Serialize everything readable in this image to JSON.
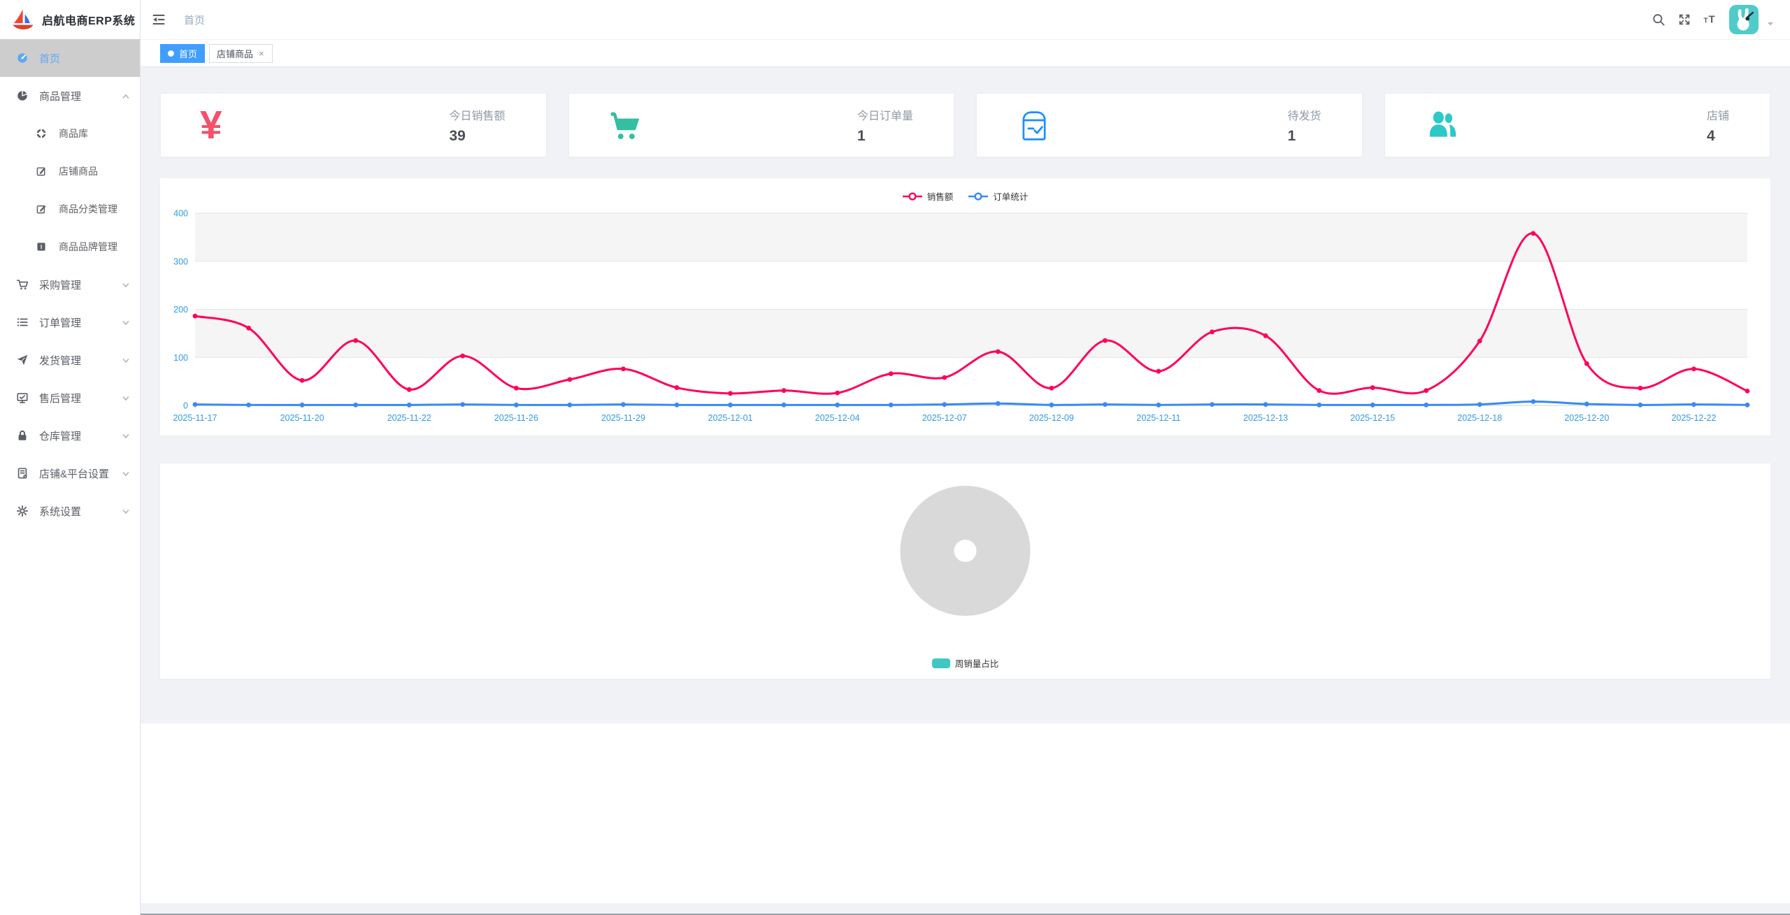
{
  "app": {
    "title": "启航电商ERP系统"
  },
  "topbar": {
    "breadcrumb": "首页",
    "icons": [
      "fold-icon",
      "search-icon",
      "fullscreen-icon",
      "font-size-icon",
      "avatar",
      "caret-down-icon"
    ]
  },
  "tabs": [
    {
      "label": "首页",
      "active": true,
      "closable": false
    },
    {
      "label": "店铺商品",
      "active": false,
      "closable": true
    }
  ],
  "sidebar": {
    "items": [
      {
        "icon": "dashboard-icon",
        "label": "首页",
        "active": true,
        "children": []
      },
      {
        "icon": "pie-chart-icon",
        "label": "商品管理",
        "expanded": true,
        "children": [
          {
            "icon": "ring-icon",
            "label": "商品库"
          },
          {
            "icon": "edit-icon",
            "label": "店铺商品"
          },
          {
            "icon": "edit-square-icon",
            "label": "商品分类管理"
          },
          {
            "icon": "brand-icon",
            "label": "商品品牌管理"
          }
        ]
      },
      {
        "icon": "cart-icon",
        "label": "采购管理",
        "expanded": false,
        "children": []
      },
      {
        "icon": "list-icon",
        "label": "订单管理",
        "expanded": false,
        "children": []
      },
      {
        "icon": "send-icon",
        "label": "发货管理",
        "expanded": false,
        "children": []
      },
      {
        "icon": "aftersale-icon",
        "label": "售后管理",
        "expanded": false,
        "children": []
      },
      {
        "icon": "lock-icon",
        "label": "仓库管理",
        "expanded": false,
        "children": []
      },
      {
        "icon": "shop-platform-icon",
        "label": "店铺&平台设置",
        "expanded": false,
        "children": []
      },
      {
        "icon": "gear-icon",
        "label": "系统设置",
        "expanded": false,
        "children": []
      }
    ]
  },
  "stat_cards": [
    {
      "icon": "yen-icon",
      "color": "#f4516c",
      "label": "今日销售额",
      "value": "39"
    },
    {
      "icon": "cart-solid-icon",
      "color": "#34bfa3",
      "label": "今日订单量",
      "value": "1"
    },
    {
      "icon": "package-check-icon",
      "color": "#1890ff",
      "label": "待发货",
      "value": "1"
    },
    {
      "icon": "people-icon",
      "color": "#2dc8c8",
      "label": "店铺",
      "value": "4"
    }
  ],
  "chart_data": [
    {
      "type": "line",
      "title": "",
      "legend_position": "top-center",
      "legend": [
        {
          "name": "销售额",
          "color": "#FF005A"
        },
        {
          "name": "订单统计",
          "color": "#3888FA"
        }
      ],
      "x_labels": [
        "2025-11-17",
        "",
        "2025-11-20",
        "",
        "2025-11-22",
        "",
        "2025-11-26",
        "",
        "2025-11-29",
        "",
        "2025-12-01",
        "",
        "2025-12-04",
        "",
        "2025-12-07",
        "",
        "2025-12-09",
        "",
        "2025-12-11",
        "",
        "2025-12-13",
        "",
        "2025-12-15",
        "",
        "2025-12-18",
        "",
        "2025-12-20",
        "",
        "2025-12-22",
        ""
      ],
      "series": [
        {
          "name": "销售额",
          "color": "#FF005A",
          "values": [
            186,
            161,
            52,
            135,
            33,
            103,
            36,
            54,
            76,
            37,
            25,
            31,
            26,
            66,
            58,
            112,
            36,
            135,
            71,
            153,
            145,
            31,
            37,
            31,
            134,
            358,
            87,
            36,
            76,
            30
          ]
        },
        {
          "name": "订单统计",
          "color": "#3888FA",
          "values": [
            2,
            1,
            1,
            1,
            1,
            2,
            1,
            1,
            2,
            1,
            1,
            1,
            1,
            1,
            2,
            4,
            1,
            2,
            1,
            2,
            2,
            1,
            1,
            1,
            2,
            8,
            3,
            1,
            2,
            1
          ]
        }
      ],
      "ylim": [
        0,
        400
      ],
      "yticks": [
        0,
        100,
        200,
        300,
        400
      ],
      "axis_label_color": "#2f9bea",
      "grid": true,
      "split_area": true,
      "smooth": true
    },
    {
      "type": "pie",
      "donut": true,
      "slices": [
        {
          "label": "",
          "value": 100,
          "color": "#d9d9d9"
        }
      ],
      "hole_color": "#ffffff",
      "legend_position": "bottom-center",
      "legend": [
        {
          "name": "周销量占比",
          "color": "#3fc8c2"
        }
      ]
    }
  ]
}
